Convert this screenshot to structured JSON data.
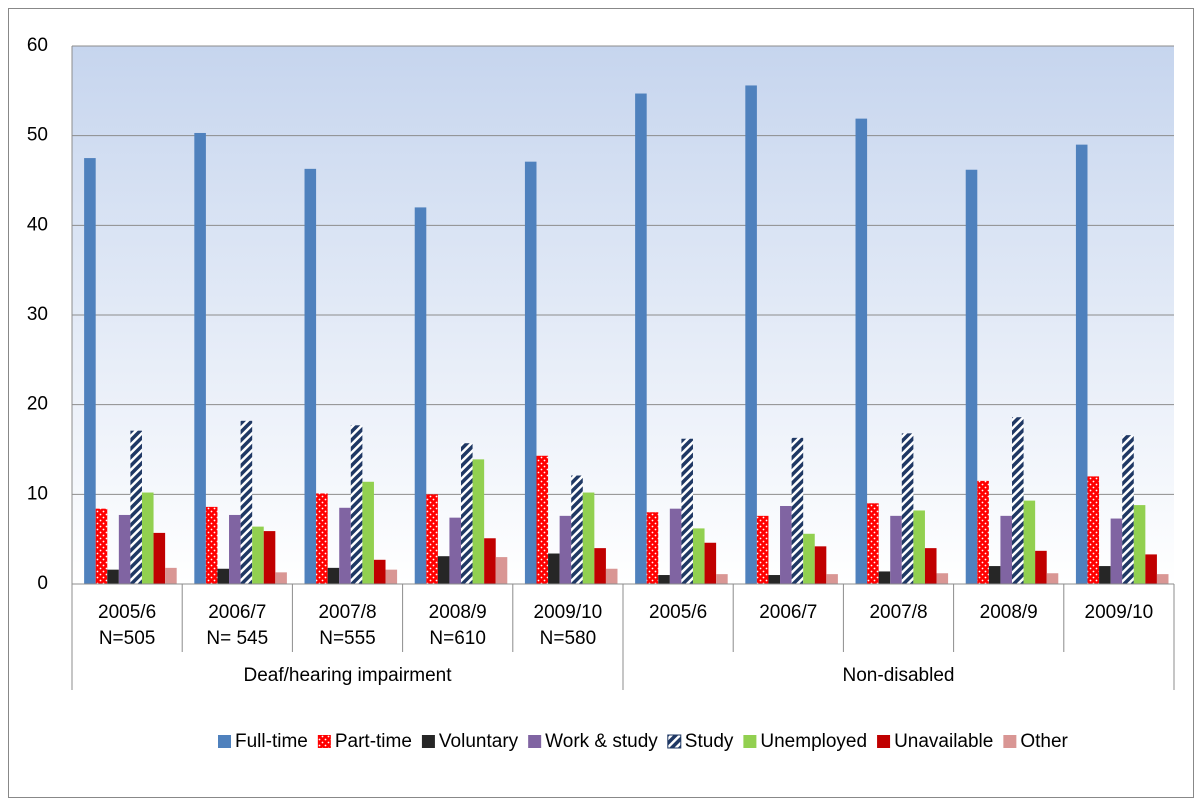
{
  "chart_data": {
    "type": "bar",
    "groups": [
      {
        "label": "Deaf/hearing impairment",
        "categories": [
          [
            "2005/6",
            "N=505"
          ],
          [
            "2006/7",
            "N= 545"
          ],
          [
            "2007/8",
            "N=555"
          ],
          [
            "2008/9",
            "N=610"
          ],
          [
            "2009/10",
            "N=580"
          ]
        ]
      },
      {
        "label": "Non-disabled",
        "categories": [
          [
            "2005/6"
          ],
          [
            "2006/7"
          ],
          [
            "2007/8"
          ],
          [
            "2008/9"
          ],
          [
            "2009/10"
          ]
        ]
      }
    ],
    "series": [
      {
        "name": "Full-time",
        "color": "#4f81bd",
        "values": [
          47.5,
          50.3,
          46.3,
          42.0,
          47.1,
          54.7,
          55.6,
          51.9,
          46.2,
          49.0
        ]
      },
      {
        "name": "Part-time",
        "color": "#ff0000",
        "pattern": "dots",
        "values": [
          8.4,
          8.6,
          10.1,
          10.0,
          14.3,
          8.0,
          7.6,
          9.0,
          11.5,
          12.0
        ]
      },
      {
        "name": "Voluntary",
        "color": "#262626",
        "values": [
          1.6,
          1.7,
          1.8,
          3.1,
          3.4,
          1.0,
          1.0,
          1.4,
          2.0,
          2.0
        ]
      },
      {
        "name": "Work & study",
        "color": "#8064a2",
        "values": [
          7.7,
          7.7,
          8.5,
          7.4,
          7.6,
          8.4,
          8.7,
          7.6,
          7.6,
          7.3
        ]
      },
      {
        "name": "Study",
        "color": "#1f3864",
        "pattern": "stripes",
        "values": [
          17.1,
          18.2,
          17.7,
          15.7,
          12.1,
          16.2,
          16.3,
          16.8,
          18.6,
          16.6
        ]
      },
      {
        "name": "Unemployed",
        "color": "#92d050",
        "values": [
          10.2,
          6.4,
          11.4,
          13.9,
          10.2,
          6.2,
          5.6,
          8.2,
          9.3,
          8.8
        ]
      },
      {
        "name": "Unavailable",
        "color": "#c00000",
        "values": [
          5.7,
          5.9,
          2.7,
          5.1,
          4.0,
          4.6,
          4.2,
          4.0,
          3.7,
          3.3
        ]
      },
      {
        "name": "Other",
        "color": "#d99694",
        "values": [
          1.8,
          1.3,
          1.6,
          3.0,
          1.7,
          1.1,
          1.1,
          1.2,
          1.2,
          1.1
        ]
      }
    ],
    "ylim": [
      0,
      60
    ],
    "yticks": [
      0,
      10,
      20,
      30,
      40,
      50,
      60
    ],
    "grid": true,
    "legend": "bottom"
  }
}
